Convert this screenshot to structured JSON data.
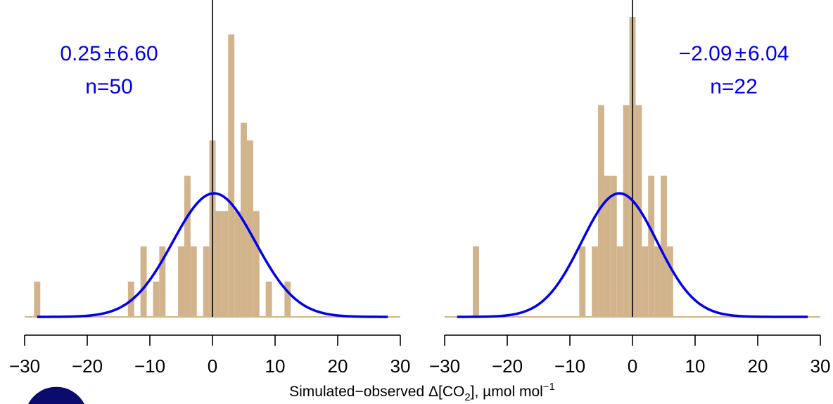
{
  "colors": {
    "bar": "#d2b48c",
    "curve": "#0000ee",
    "axis": "#000000",
    "logo": "#0b0b6e"
  },
  "xlabel": {
    "main": "Simulated−observed Δ[CO",
    "sub": "2",
    "mid": "], µmol mol",
    "sup": "−1"
  },
  "chart_data": [
    {
      "type": "bar",
      "xlim": [
        -30,
        30
      ],
      "ylim": [
        0,
        17
      ],
      "bin_width": 1,
      "bins": [
        {
          "x": -28,
          "y": 2
        },
        {
          "x": -13,
          "y": 2
        },
        {
          "x": -11,
          "y": 4
        },
        {
          "x": -9,
          "y": 2
        },
        {
          "x": -8,
          "y": 4
        },
        {
          "x": -5,
          "y": 4
        },
        {
          "x": -4,
          "y": 8
        },
        {
          "x": -3,
          "y": 4
        },
        {
          "x": -1,
          "y": 4
        },
        {
          "x": 0,
          "y": 10
        },
        {
          "x": 1,
          "y": 6
        },
        {
          "x": 2,
          "y": 6
        },
        {
          "x": 3,
          "y": 16
        },
        {
          "x": 4,
          "y": 6
        },
        {
          "x": 5,
          "y": 11
        },
        {
          "x": 6,
          "y": 10
        },
        {
          "x": 7,
          "y": 6
        },
        {
          "x": 9,
          "y": 2
        },
        {
          "x": 12,
          "y": 2
        }
      ],
      "curve": {
        "mean": 0.25,
        "sd": 6.6,
        "peak": 7,
        "range": [
          -28,
          28
        ]
      },
      "xticks": [
        -30,
        -20,
        -10,
        0,
        10,
        20,
        30
      ],
      "vline": 0,
      "stat_text": {
        "mean": "0.25",
        "pm": "±",
        "sd": "6.60",
        "n": "n=50"
      }
    },
    {
      "type": "bar",
      "xlim": [
        -30,
        30
      ],
      "ylim": [
        0,
        17
      ],
      "bin_width": 1,
      "bins": [
        {
          "x": -25,
          "y": 4
        },
        {
          "x": -8,
          "y": 4
        },
        {
          "x": -6,
          "y": 4
        },
        {
          "x": -5,
          "y": 12
        },
        {
          "x": -4,
          "y": 8
        },
        {
          "x": -3,
          "y": 8
        },
        {
          "x": -2,
          "y": 4
        },
        {
          "x": -1,
          "y": 12
        },
        {
          "x": 0,
          "y": 17
        },
        {
          "x": 1,
          "y": 12
        },
        {
          "x": 2,
          "y": 4
        },
        {
          "x": 3,
          "y": 8
        },
        {
          "x": 4,
          "y": 4
        },
        {
          "x": 5,
          "y": 8
        },
        {
          "x": 6,
          "y": 4
        }
      ],
      "curve": {
        "mean": -2.09,
        "sd": 6.04,
        "peak": 7,
        "range": [
          -28,
          28
        ]
      },
      "xticks": [
        -30,
        -20,
        -10,
        0,
        10,
        20,
        30
      ],
      "vline": 0,
      "stat_text": {
        "mean": "−2.09",
        "pm": "±",
        "sd": "6.04",
        "n": "n=22"
      }
    }
  ]
}
